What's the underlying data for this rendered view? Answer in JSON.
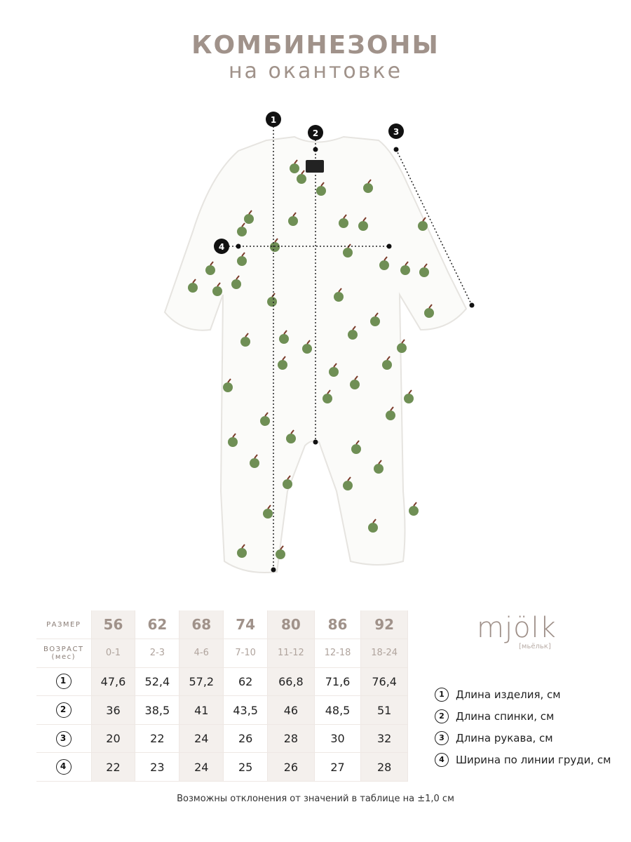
{
  "title": "КОМБИНЕЗОНЫ",
  "subtitle": "на окантовке",
  "diagram": {
    "markers": [
      "1",
      "2",
      "3",
      "4"
    ],
    "label_logo": "mjölk"
  },
  "table": {
    "header_label": "РАЗМЕР",
    "age_label": "ВОЗРАСТ",
    "age_unit": "(мес)",
    "sizes": [
      "56",
      "62",
      "68",
      "74",
      "80",
      "86",
      "92"
    ],
    "ages": [
      "0-1",
      "2-3",
      "4-6",
      "7-10",
      "11-12",
      "12-18",
      "18-24"
    ],
    "rows": [
      {
        "marker": "1",
        "values": [
          "47,6",
          "52,4",
          "57,2",
          "62",
          "66,8",
          "71,6",
          "76,4"
        ]
      },
      {
        "marker": "2",
        "values": [
          "36",
          "38,5",
          "41",
          "43,5",
          "46",
          "48,5",
          "51"
        ]
      },
      {
        "marker": "3",
        "values": [
          "20",
          "22",
          "24",
          "26",
          "28",
          "30",
          "32"
        ]
      },
      {
        "marker": "4",
        "values": [
          "22",
          "23",
          "24",
          "25",
          "26",
          "27",
          "28"
        ]
      }
    ]
  },
  "logo": {
    "name": "mjölk",
    "transcription": "[мьёльк]"
  },
  "legend": [
    {
      "marker": "1",
      "label": "Длина изделия, см"
    },
    {
      "marker": "2",
      "label": "Длина спинки, см"
    },
    {
      "marker": "3",
      "label": "Длина рукава, см"
    },
    {
      "marker": "4",
      "label": "Ширина по линии груди, см"
    }
  ],
  "note": "Возможны отклонения от значений в таблице на ±1,0 см",
  "colors": {
    "accent": "#a0928a",
    "shade": "#f4f0ed",
    "apple": "#6f8f55"
  }
}
